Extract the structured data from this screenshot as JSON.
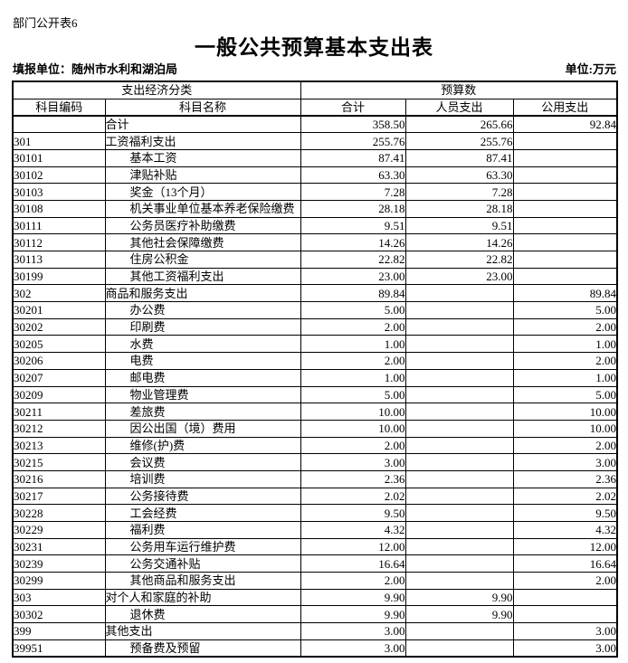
{
  "page": {
    "doc_label": "部门公开表6",
    "title": "一般公共预算基本支出表",
    "reporting_unit": "填报单位：随州市水利和湖泊局",
    "money_unit": "单位:万元"
  },
  "colors": {
    "text": "#000000",
    "border": "#000000",
    "background": "#ffffff"
  },
  "table": {
    "header": {
      "group_classification": "支出经济分类",
      "group_budget": "预算数",
      "col_code": "科目编码",
      "col_name": "科目名称",
      "col_total": "合计",
      "col_personnel": "人员支出",
      "col_public": "公用支出"
    },
    "rows": [
      {
        "code": "",
        "name": "合计",
        "indent": 0,
        "total": "358.50",
        "personnel": "265.66",
        "public": "92.84"
      },
      {
        "code": "301",
        "name": "工资福利支出",
        "indent": 0,
        "total": "255.76",
        "personnel": "255.76",
        "public": ""
      },
      {
        "code": "30101",
        "name": "基本工资",
        "indent": 1,
        "total": "87.41",
        "personnel": "87.41",
        "public": ""
      },
      {
        "code": "30102",
        "name": "津贴补贴",
        "indent": 1,
        "total": "63.30",
        "personnel": "63.30",
        "public": ""
      },
      {
        "code": "30103",
        "name": "奖金（13个月）",
        "indent": 1,
        "total": "7.28",
        "personnel": "7.28",
        "public": ""
      },
      {
        "code": "30108",
        "name": "机关事业单位基本养老保险缴费",
        "indent": 1,
        "total": "28.18",
        "personnel": "28.18",
        "public": ""
      },
      {
        "code": "30111",
        "name": "公务员医疗补助缴费",
        "indent": 1,
        "total": "9.51",
        "personnel": "9.51",
        "public": ""
      },
      {
        "code": "30112",
        "name": "其他社会保障缴费",
        "indent": 1,
        "total": "14.26",
        "personnel": "14.26",
        "public": ""
      },
      {
        "code": "30113",
        "name": "住房公积金",
        "indent": 1,
        "total": "22.82",
        "personnel": "22.82",
        "public": ""
      },
      {
        "code": "30199",
        "name": "其他工资福利支出",
        "indent": 1,
        "total": "23.00",
        "personnel": "23.00",
        "public": ""
      },
      {
        "code": "302",
        "name": "商品和服务支出",
        "indent": 0,
        "total": "89.84",
        "personnel": "",
        "public": "89.84"
      },
      {
        "code": "30201",
        "name": "办公费",
        "indent": 1,
        "total": "5.00",
        "personnel": "",
        "public": "5.00"
      },
      {
        "code": "30202",
        "name": "印刷费",
        "indent": 1,
        "total": "2.00",
        "personnel": "",
        "public": "2.00"
      },
      {
        "code": "30205",
        "name": "水费",
        "indent": 1,
        "total": "1.00",
        "personnel": "",
        "public": "1.00"
      },
      {
        "code": "30206",
        "name": "电费",
        "indent": 1,
        "total": "2.00",
        "personnel": "",
        "public": "2.00"
      },
      {
        "code": "30207",
        "name": "邮电费",
        "indent": 1,
        "total": "1.00",
        "personnel": "",
        "public": "1.00"
      },
      {
        "code": "30209",
        "name": "物业管理费",
        "indent": 1,
        "total": "5.00",
        "personnel": "",
        "public": "5.00"
      },
      {
        "code": "30211",
        "name": "差旅费",
        "indent": 1,
        "total": "10.00",
        "personnel": "",
        "public": "10.00"
      },
      {
        "code": "30212",
        "name": "因公出国（境）费用",
        "indent": 1,
        "total": "10.00",
        "personnel": "",
        "public": "10.00"
      },
      {
        "code": "30213",
        "name": "维修(护)费",
        "indent": 1,
        "total": "2.00",
        "personnel": "",
        "public": "2.00"
      },
      {
        "code": "30215",
        "name": "会议费",
        "indent": 1,
        "total": "3.00",
        "personnel": "",
        "public": "3.00"
      },
      {
        "code": "30216",
        "name": "培训费",
        "indent": 1,
        "total": "2.36",
        "personnel": "",
        "public": "2.36"
      },
      {
        "code": "30217",
        "name": "公务接待费",
        "indent": 1,
        "total": "2.02",
        "personnel": "",
        "public": "2.02"
      },
      {
        "code": "30228",
        "name": "工会经费",
        "indent": 1,
        "total": "9.50",
        "personnel": "",
        "public": "9.50"
      },
      {
        "code": "30229",
        "name": "福利费",
        "indent": 1,
        "total": "4.32",
        "personnel": "",
        "public": "4.32"
      },
      {
        "code": "30231",
        "name": "公务用车运行维护费",
        "indent": 1,
        "total": "12.00",
        "personnel": "",
        "public": "12.00"
      },
      {
        "code": "30239",
        "name": "公务交通补贴",
        "indent": 1,
        "total": "16.64",
        "personnel": "",
        "public": "16.64"
      },
      {
        "code": "30299",
        "name": "其他商品和服务支出",
        "indent": 1,
        "total": "2.00",
        "personnel": "",
        "public": "2.00"
      },
      {
        "code": "303",
        "name": "对个人和家庭的补助",
        "indent": 0,
        "total": "9.90",
        "personnel": "9.90",
        "public": ""
      },
      {
        "code": "30302",
        "name": "退休费",
        "indent": 1,
        "total": "9.90",
        "personnel": "9.90",
        "public": ""
      },
      {
        "code": "399",
        "name": "其他支出",
        "indent": 0,
        "total": "3.00",
        "personnel": "",
        "public": "3.00"
      },
      {
        "code": "39951",
        "name": "预备费及预留",
        "indent": 1,
        "total": "3.00",
        "personnel": "",
        "public": "3.00"
      }
    ]
  }
}
